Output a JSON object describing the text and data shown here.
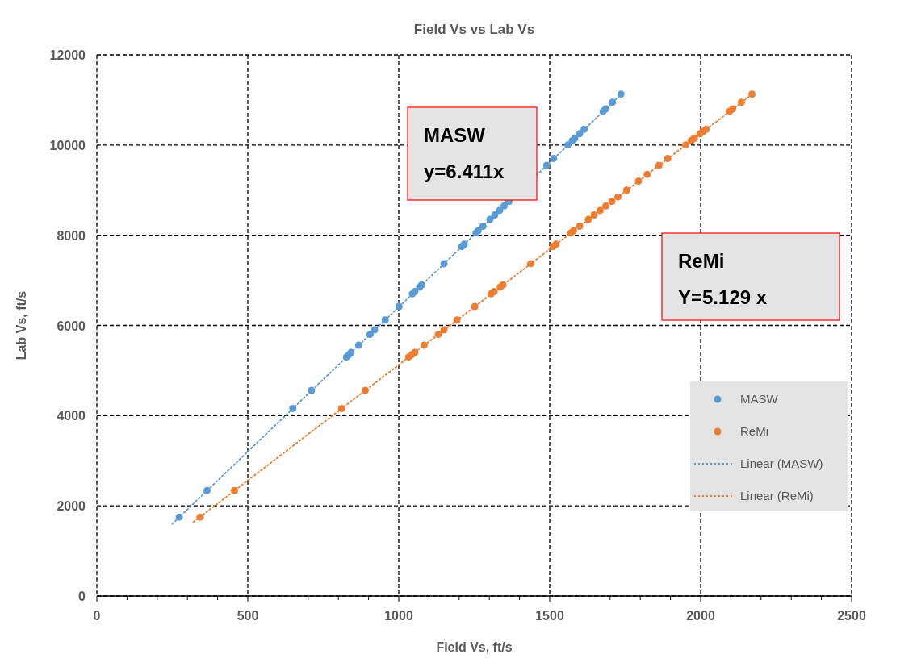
{
  "chart_data": {
    "type": "scatter",
    "title": "Field Vs vs Lab Vs",
    "xlabel": "Field Vs, ft/s",
    "ylabel": "Lab Vs, ft/s",
    "xlim": [
      0,
      2500
    ],
    "xticks": [
      0,
      500,
      1000,
      1500,
      2000,
      2500
    ],
    "ylim": [
      0,
      12000
    ],
    "yticks": [
      0,
      2000,
      4000,
      6000,
      8000,
      10000,
      12000
    ],
    "grid": true,
    "legend": "bottom right",
    "marker": "circle",
    "annotations": [
      "MASW\ny=6.411x",
      "ReMi\nY=5.129 x"
    ],
    "series": [
      {
        "name": "MASW",
        "color": "#5b9bd5",
        "x": [
          273,
          365,
          649,
          711,
          827,
          835,
          842,
          867,
          905,
          920,
          955,
          1001,
          1045,
          1053,
          1069,
          1076,
          1150,
          1209,
          1217,
          1256,
          1263,
          1279,
          1302,
          1318,
          1334,
          1349,
          1365,
          1490,
          1513,
          1560,
          1575,
          1583,
          1599,
          1614,
          1677,
          1685,
          1708,
          1736
        ],
        "values": [
          1750,
          2340,
          4160,
          4560,
          5300,
          5350,
          5400,
          5560,
          5800,
          5900,
          6120,
          6420,
          6700,
          6750,
          6850,
          6900,
          7370,
          7750,
          7800,
          8050,
          8100,
          8200,
          8350,
          8450,
          8550,
          8650,
          8750,
          9550,
          9700,
          10000,
          10100,
          10150,
          10250,
          10350,
          10750,
          10800,
          10950,
          11130
        ]
      },
      {
        "name": "ReMi",
        "color": "#ed7d31",
        "x": [
          342,
          456,
          811,
          889,
          1033,
          1043,
          1053,
          1084,
          1131,
          1150,
          1193,
          1252,
          1306,
          1316,
          1336,
          1345,
          1437,
          1511,
          1521,
          1570,
          1579,
          1599,
          1628,
          1647,
          1667,
          1686,
          1706,
          1726,
          1755,
          1794,
          1823,
          1862,
          1891,
          1950,
          1969,
          1979,
          1998,
          2008,
          2018,
          2096,
          2106,
          2135,
          2170
        ],
        "values": [
          1750,
          2340,
          4160,
          4560,
          5300,
          5350,
          5400,
          5560,
          5800,
          5900,
          6120,
          6420,
          6700,
          6750,
          6850,
          6900,
          7370,
          7750,
          7800,
          8050,
          8100,
          8200,
          8350,
          8450,
          8550,
          8650,
          8750,
          8850,
          9000,
          9200,
          9350,
          9550,
          9700,
          10000,
          10100,
          10150,
          10250,
          10300,
          10350,
          10750,
          10800,
          10950,
          11130
        ]
      },
      {
        "name": "Linear (MASW)",
        "type": "line",
        "line_style": "dotted",
        "marker": "none",
        "color": "#5b9bd5",
        "x": [
          250,
          1740
        ],
        "values": [
          1600,
          11150
        ]
      },
      {
        "name": "Linear (ReMi)",
        "type": "line",
        "line_style": "dotted",
        "marker": "none",
        "color": "#ed7d31",
        "x": [
          320,
          2175
        ],
        "values": [
          1640,
          11150
        ]
      }
    ]
  }
}
